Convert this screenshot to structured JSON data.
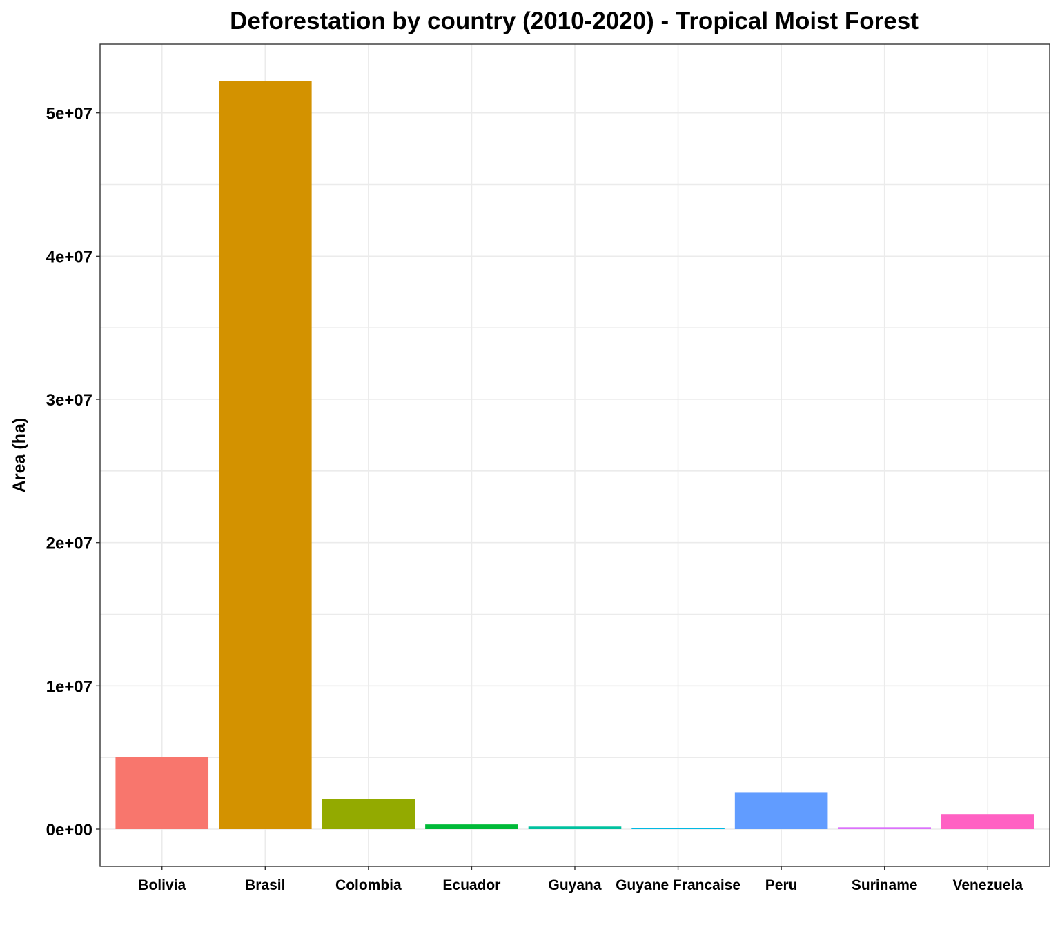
{
  "chart_data": {
    "type": "bar",
    "title": "Deforestation by country (2010-2020) - Tropical Moist Forest",
    "xlabel": "",
    "ylabel": "Area (ha)",
    "categories": [
      "Bolivia",
      "Brasil",
      "Colombia",
      "Ecuador",
      "Guyana",
      "Guyane Francaise",
      "Peru",
      "Suriname",
      "Venezuela"
    ],
    "values": [
      5050000,
      52200000,
      2100000,
      330000,
      180000,
      40000,
      2580000,
      130000,
      1050000
    ],
    "colors": [
      "#F8766D",
      "#D39200",
      "#93AA00",
      "#00BA38",
      "#00C19F",
      "#00B9E3",
      "#619CFF",
      "#DB72FB",
      "#FF61C3"
    ],
    "ylim": [
      -2600000,
      54800000
    ],
    "yticks": [
      0,
      10000000,
      20000000,
      30000000,
      40000000,
      50000000
    ],
    "ytick_labels": [
      "0e+00",
      "1e+07",
      "2e+07",
      "3e+07",
      "4e+07",
      "5e+07"
    ],
    "grid": true,
    "legend": "none"
  }
}
